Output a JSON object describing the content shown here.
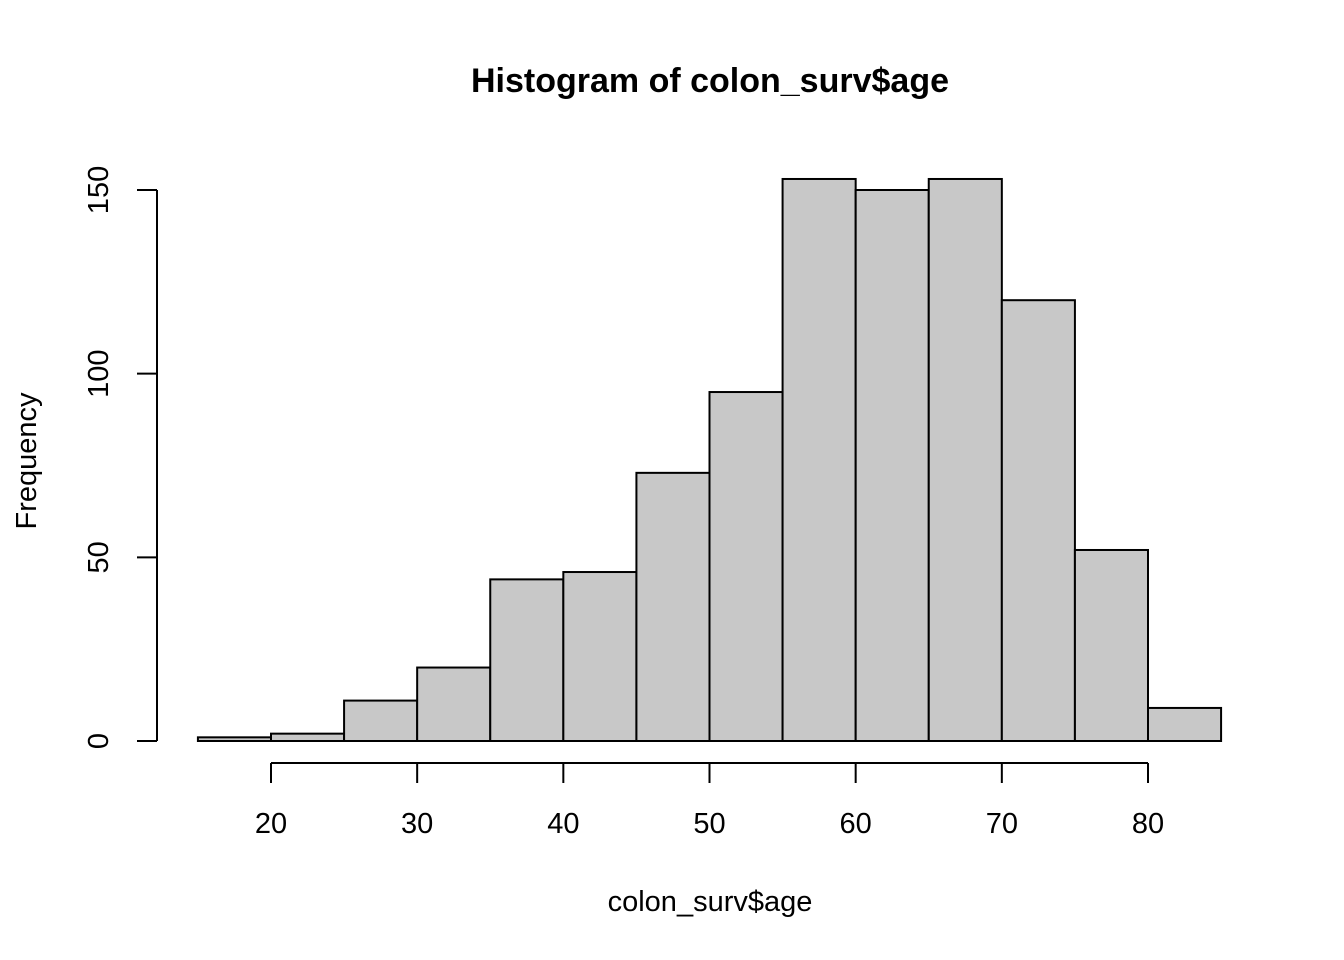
{
  "chart_data": {
    "type": "bar",
    "title": "Histogram of colon_surv$age",
    "xlabel": "colon_surv$age",
    "ylabel": "Frequency",
    "bins": [
      {
        "from": 15,
        "to": 20,
        "count": 1
      },
      {
        "from": 20,
        "to": 25,
        "count": 2
      },
      {
        "from": 25,
        "to": 30,
        "count": 11
      },
      {
        "from": 30,
        "to": 35,
        "count": 20
      },
      {
        "from": 35,
        "to": 40,
        "count": 44
      },
      {
        "from": 40,
        "to": 45,
        "count": 46
      },
      {
        "from": 45,
        "to": 50,
        "count": 73
      },
      {
        "from": 50,
        "to": 55,
        "count": 95
      },
      {
        "from": 55,
        "to": 60,
        "count": 153
      },
      {
        "from": 60,
        "to": 65,
        "count": 150
      },
      {
        "from": 65,
        "to": 70,
        "count": 153
      },
      {
        "from": 70,
        "to": 75,
        "count": 120
      },
      {
        "from": 75,
        "to": 80,
        "count": 52
      },
      {
        "from": 80,
        "to": 85,
        "count": 9
      }
    ],
    "xticks": [
      20,
      30,
      40,
      50,
      60,
      70,
      80
    ],
    "yticks": [
      0,
      50,
      100,
      150
    ],
    "xlim": [
      15,
      85
    ],
    "ylim": [
      0,
      153
    ],
    "bar_color": "#c8c8c8",
    "grid": false,
    "legend": "none"
  }
}
